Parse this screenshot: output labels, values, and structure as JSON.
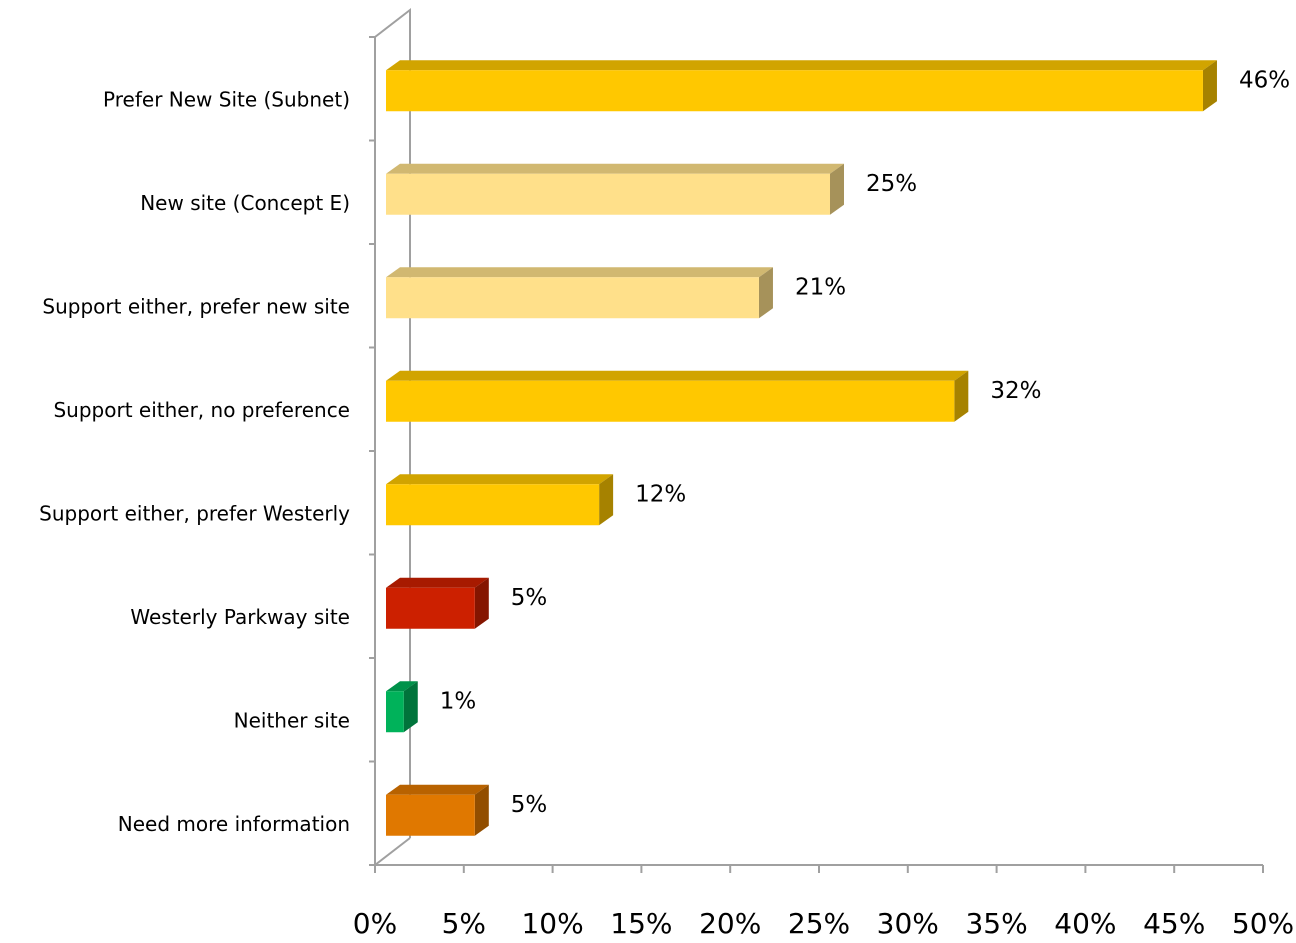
{
  "chart_data": {
    "type": "bar",
    "orientation": "horizontal",
    "categories": [
      "Prefer New Site (Subnet)",
      "New site (Concept E)",
      "Support either, prefer new site",
      "Support either, no preference",
      "Support either, prefer Westerly",
      "Westerly Parkway site",
      "Neither site",
      "Need more information"
    ],
    "values": [
      46,
      25,
      21,
      32,
      12,
      5,
      1,
      5
    ],
    "value_labels": [
      "46%",
      "25%",
      "21%",
      "32%",
      "12%",
      "5%",
      "1%",
      "5%"
    ],
    "colors": [
      "#ffc800",
      "#ffe08a",
      "#ffe08a",
      "#ffc800",
      "#ffc800",
      "#cc2000",
      "#00b25a",
      "#e07800"
    ],
    "xlim": [
      0,
      50
    ],
    "xticks": [
      {
        "value": 0,
        "label": "0%"
      },
      {
        "value": 5,
        "label": "5%"
      },
      {
        "value": 10,
        "label": "10%"
      },
      {
        "value": 15,
        "label": "15%"
      },
      {
        "value": 20,
        "label": "20%"
      },
      {
        "value": 25,
        "label": "25%"
      },
      {
        "value": 30,
        "label": "30%"
      },
      {
        "value": 35,
        "label": "35%"
      },
      {
        "value": 40,
        "label": "40%"
      },
      {
        "value": 45,
        "label": "45%"
      },
      {
        "value": 50,
        "label": "50%"
      }
    ],
    "grid": false
  }
}
